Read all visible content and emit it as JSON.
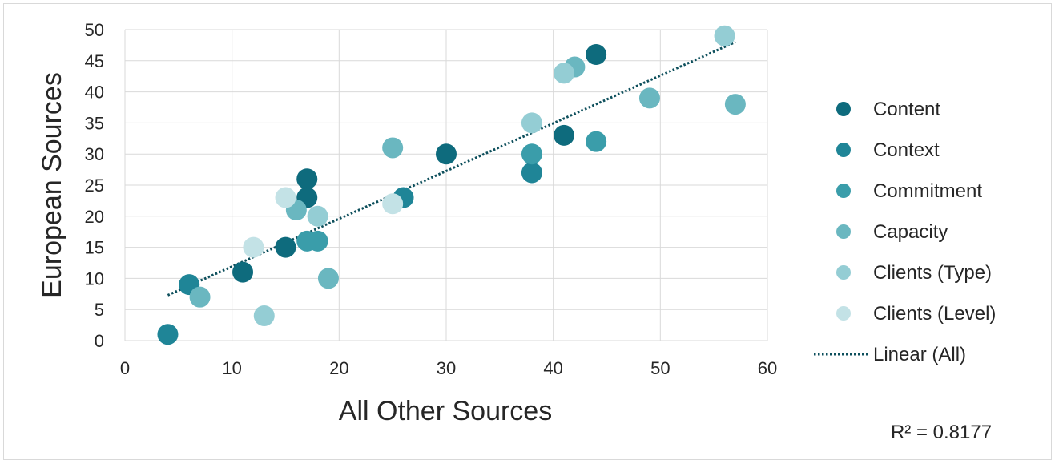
{
  "chart_data": {
    "type": "scatter",
    "xlabel": "All Other Sources",
    "ylabel": "European Sources",
    "xlim": [
      0,
      60
    ],
    "ylim": [
      0,
      50
    ],
    "xticks": [
      0,
      10,
      20,
      30,
      40,
      50,
      60
    ],
    "yticks": [
      0,
      5,
      10,
      15,
      20,
      25,
      30,
      35,
      40,
      45,
      50
    ],
    "grid": true,
    "legend_position": "right",
    "series": [
      {
        "name": "Content",
        "color": "#0e6b7d",
        "points": [
          [
            17,
            26
          ],
          [
            17,
            23
          ],
          [
            11,
            11
          ],
          [
            15,
            15
          ],
          [
            30,
            30
          ],
          [
            41,
            33
          ],
          [
            44,
            46
          ]
        ]
      },
      {
        "name": "Context",
        "color": "#1f8597",
        "points": [
          [
            6,
            9
          ],
          [
            4,
            1
          ],
          [
            26,
            23
          ],
          [
            38,
            27
          ]
        ]
      },
      {
        "name": "Commitment",
        "color": "#3a9daa",
        "points": [
          [
            18,
            16
          ],
          [
            17,
            16
          ],
          [
            38,
            30
          ],
          [
            44,
            32
          ]
        ]
      },
      {
        "name": "Capacity",
        "color": "#6ab7c0",
        "points": [
          [
            7,
            7
          ],
          [
            25,
            31
          ],
          [
            16,
            21
          ],
          [
            19,
            10
          ],
          [
            49,
            39
          ],
          [
            57,
            38
          ],
          [
            42,
            44
          ]
        ]
      },
      {
        "name": "Clients (Type)",
        "color": "#94cdd4",
        "points": [
          [
            18,
            20
          ],
          [
            13,
            4
          ],
          [
            38,
            35
          ],
          [
            41,
            43
          ],
          [
            56,
            49
          ]
        ]
      },
      {
        "name": "Clients (Level)",
        "color": "#c3e2e6",
        "points": [
          [
            12,
            15
          ],
          [
            15,
            23
          ],
          [
            25,
            22
          ]
        ]
      }
    ],
    "trendline": {
      "name": "Linear (All)",
      "color": "#0d4f5c",
      "x_range": [
        4,
        57
      ],
      "y_range": [
        7.3,
        48
      ],
      "r_squared_label": "R² = 0.8177"
    }
  }
}
